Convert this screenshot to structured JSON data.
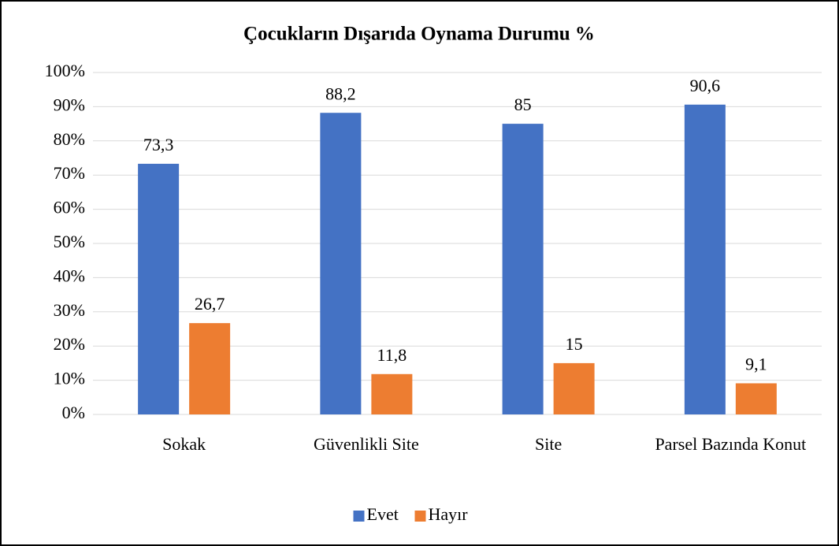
{
  "chart_data": {
    "type": "bar",
    "title": "Çocukların Dışarıda Oynama Durumu %",
    "categories": [
      "Sokak",
      "Güvenlikli Site",
      "Site",
      "Parsel Bazında Konut"
    ],
    "series": [
      {
        "name": "Evet",
        "color": "#4472c4",
        "values": [
          73.3,
          88.2,
          85,
          90.6
        ],
        "value_labels": [
          "73,3",
          "88,2",
          "85",
          "90,6"
        ]
      },
      {
        "name": "Hayır",
        "color": "#ed7d31",
        "values": [
          26.7,
          11.8,
          15,
          9.1
        ],
        "value_labels": [
          "26,7",
          "11,8",
          "15",
          "9,1"
        ]
      }
    ],
    "ylim": [
      0,
      100
    ],
    "yticks": [
      {
        "value": 0,
        "label": "0%"
      },
      {
        "value": 10,
        "label": "10%"
      },
      {
        "value": 20,
        "label": "20%"
      },
      {
        "value": 30,
        "label": "30%"
      },
      {
        "value": 40,
        "label": "40%"
      },
      {
        "value": 50,
        "label": "50%"
      },
      {
        "value": 60,
        "label": "60%"
      },
      {
        "value": 70,
        "label": "70%"
      },
      {
        "value": 80,
        "label": "80%"
      },
      {
        "value": 90,
        "label": "90%"
      },
      {
        "value": 100,
        "label": "100%"
      }
    ],
    "grid": true,
    "legend": "bottom"
  }
}
